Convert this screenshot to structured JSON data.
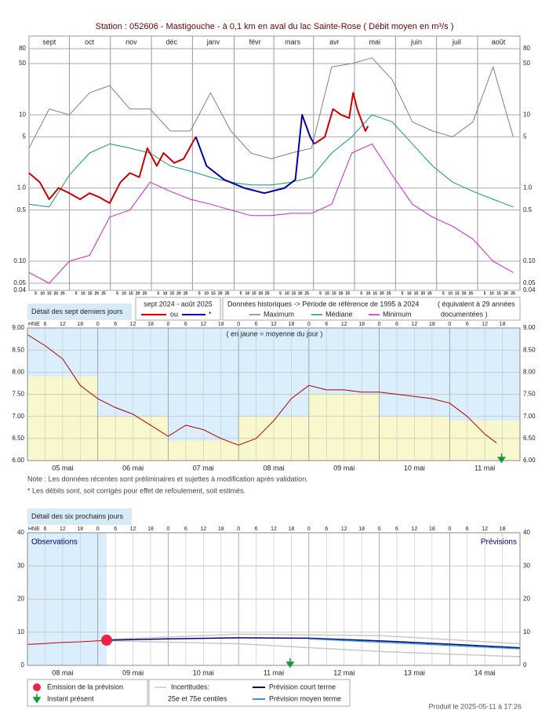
{
  "chart_data": [
    {
      "type": "line",
      "log_scale": true,
      "title": "Station : 052606      -  Mastigouche - à 0,1 km en aval du lac Sainte-Rose   ( Débit moyen en m³/s )",
      "xlim": [
        0,
        365
      ],
      "xticks": [
        {
          "value": 15,
          "label": "sept"
        },
        {
          "value": 45,
          "label": "oct"
        },
        {
          "value": 76,
          "label": "nov"
        },
        {
          "value": 106,
          "label": "déc"
        },
        {
          "value": 137,
          "label": "janv"
        },
        {
          "value": 168,
          "label": "févr"
        },
        {
          "value": 196,
          "label": "mars"
        },
        {
          "value": 227,
          "label": "avr"
        },
        {
          "value": 257,
          "label": "mai"
        },
        {
          "value": 288,
          "label": "juin"
        },
        {
          "value": 318,
          "label": "juil"
        },
        {
          "value": 349,
          "label": "août"
        }
      ],
      "day_ticks": [
        5,
        10,
        15,
        20,
        25
      ],
      "ylim": [
        0.04,
        80
      ],
      "yticks": [
        0.04,
        0.05,
        {
          "value": 0.1,
          "label": "0.10"
        },
        0.5,
        {
          "value": 1,
          "label": "1.0"
        },
        5,
        10,
        50,
        80
      ],
      "grid": true,
      "series": [
        {
          "name": "Maximum",
          "color": "#808080",
          "x": [
            0,
            15,
            30,
            45,
            60,
            75,
            90,
            105,
            120,
            135,
            150,
            165,
            180,
            195,
            210,
            225,
            240,
            255,
            270,
            285,
            300,
            315,
            330,
            345,
            360
          ],
          "values": [
            3.5,
            12,
            10,
            20,
            25,
            12,
            12,
            6,
            6,
            20,
            6,
            3,
            2.5,
            3,
            3.5,
            45,
            50,
            60,
            30,
            8,
            6,
            5,
            8,
            45,
            5
          ]
        },
        {
          "name": "Médiane",
          "color": "#119977",
          "x": [
            0,
            15,
            30,
            45,
            60,
            75,
            90,
            105,
            120,
            135,
            150,
            165,
            180,
            195,
            210,
            225,
            240,
            255,
            270,
            285,
            300,
            315,
            330,
            345,
            360
          ],
          "values": [
            0.6,
            0.55,
            1.5,
            3,
            4,
            3.5,
            3,
            2,
            1.7,
            1.4,
            1.2,
            1.1,
            1.1,
            1.2,
            1.4,
            3,
            5,
            10,
            8,
            4,
            2,
            1.2,
            0.9,
            0.7,
            0.55
          ]
        },
        {
          "name": "Minimum",
          "color": "#cc22cc",
          "x": [
            0,
            15,
            30,
            45,
            60,
            75,
            90,
            105,
            120,
            135,
            150,
            165,
            180,
            195,
            210,
            225,
            240,
            255,
            270,
            285,
            300,
            315,
            330,
            345,
            360
          ],
          "values": [
            0.07,
            0.05,
            0.1,
            0.12,
            0.4,
            0.5,
            1.2,
            0.9,
            0.7,
            0.6,
            0.5,
            0.42,
            0.42,
            0.45,
            0.45,
            0.6,
            3,
            4,
            1.5,
            0.6,
            0.4,
            0.3,
            0.2,
            0.1,
            0.07
          ]
        },
        {
          "color": "#cc0000",
          "x": [
            0,
            8,
            15,
            22,
            30,
            38,
            45,
            52,
            60,
            68,
            75,
            82,
            88,
            95,
            100,
            108,
            115,
            124,
            170,
            212,
            220,
            226,
            232,
            238,
            241,
            244,
            250,
            252
          ],
          "values": [
            1.6,
            1.2,
            0.7,
            1.0,
            0.85,
            0.7,
            0.85,
            0.75,
            0.62,
            1.2,
            1.6,
            1.4,
            3.5,
            2.0,
            3.0,
            2.2,
            2.5,
            5.0,
            null,
            4,
            5,
            12,
            10,
            9,
            20,
            12,
            6,
            7
          ]
        },
        {
          "color": "#0000aa",
          "x": [
            124,
            132,
            145,
            160,
            175,
            190,
            198,
            203,
            209,
            212
          ],
          "values": [
            5,
            2.0,
            1.3,
            1.0,
            0.85,
            1.0,
            1.3,
            10,
            5,
            4
          ]
        }
      ],
      "legend": {
        "period": "sept 2024 - août 2025",
        "or": "ou",
        "star": "*",
        "historical": "Données historiques -> Période de référence  de 1995 à 2024",
        "equivalent": "( équivalent à 29 années",
        "documented": "documentées )"
      }
    },
    {
      "type": "line",
      "title": "Détail des sept derniers jours",
      "time_zone": "HNE",
      "hour_labels": [
        6,
        12,
        18,
        0,
        6,
        12,
        18,
        0,
        6,
        12,
        18,
        0,
        6,
        12,
        18,
        0,
        6,
        12,
        18,
        0,
        6,
        12,
        18,
        0,
        6,
        12,
        18
      ],
      "annotation": "( en jaune = moyenne du jour )",
      "xlim": [
        0,
        168
      ],
      "categories": [
        "05 mai",
        "06 mai",
        "07 mai",
        "08 mai",
        "09 mai",
        "10 mai",
        "11 mai"
      ],
      "daily_means": [
        7.9,
        7.0,
        6.45,
        7.0,
        7.5,
        7.0,
        6.9
      ],
      "ylim": [
        6,
        9
      ],
      "yticks": [
        {
          "value": 6,
          "label": "6.00"
        },
        {
          "value": 6.5,
          "label": "6.50"
        },
        {
          "value": 7,
          "label": "7.00"
        },
        {
          "value": 7.5,
          "label": "7.50"
        },
        {
          "value": 8,
          "label": "8.00"
        },
        {
          "value": 8.5,
          "label": "8.50"
        },
        {
          "value": 9,
          "label": "9.00"
        }
      ],
      "series": [
        {
          "color": "#aa0000",
          "x": [
            0,
            6,
            12,
            18,
            24,
            30,
            36,
            42,
            48,
            54,
            60,
            66,
            72,
            78,
            84,
            90,
            96,
            102,
            108,
            114,
            120,
            126,
            132,
            138,
            144,
            150,
            156,
            160
          ],
          "values": [
            8.85,
            8.6,
            8.3,
            7.7,
            7.4,
            7.2,
            7.05,
            6.8,
            6.55,
            6.8,
            6.7,
            6.5,
            6.35,
            6.5,
            6.9,
            7.4,
            7.7,
            7.6,
            7.6,
            7.55,
            7.55,
            7.5,
            7.45,
            7.4,
            7.3,
            7.0,
            6.6,
            6.4
          ]
        }
      ],
      "present_instant": 161.7,
      "notes": [
        "Note : Les données récentes sont préliminaires et sujettes à modification après validation.",
        "* Les débits sont, soit corrigés pour effet de refoulement, soit estimés."
      ]
    },
    {
      "type": "line",
      "title": "Détail des six prochains jours",
      "time_zone": "HNE",
      "hour_labels": [
        6,
        12,
        18,
        0,
        6,
        12,
        18,
        0,
        6,
        12,
        18,
        0,
        6,
        12,
        18,
        0,
        6,
        12,
        18,
        0,
        6,
        12,
        18,
        0,
        6,
        12,
        18
      ],
      "forecast_label": "Prévisions",
      "xlim": [
        0,
        168
      ],
      "categories": [
        "08 mai",
        "09 mai",
        "10 mai",
        "11 mai",
        "12 mai",
        "13 mai",
        "14 mai"
      ],
      "ylim": [
        0,
        40
      ],
      "yticks": [
        0,
        10,
        20,
        30,
        40
      ],
      "series": [
        {
          "name": "Observations",
          "color": "#cc0000",
          "x": [
            0,
            6,
            12,
            18,
            24,
            27
          ],
          "values": [
            6.3,
            6.6,
            6.9,
            7.1,
            7.4,
            7.6
          ]
        },
        {
          "color": "#c8c8c8",
          "x": [
            27,
            72,
            120,
            168
          ],
          "values": [
            7.8,
            9.4,
            9.0,
            6.5
          ]
        },
        {
          "color": "#c8c8c8",
          "x": [
            27,
            72,
            120,
            168
          ],
          "values": [
            7.4,
            6.5,
            4.2,
            2.6
          ]
        },
        {
          "name": "Prévision court terme",
          "color": "#000080",
          "x": [
            27,
            48,
            72,
            96,
            120,
            144,
            168
          ],
          "values": [
            7.6,
            8.0,
            8.3,
            8.2,
            7.4,
            6.4,
            5.3
          ]
        },
        {
          "name": "Prévision moyen terme",
          "color": "#3399dd",
          "x": [
            96,
            120,
            144,
            168
          ],
          "values": [
            8.0,
            7.0,
            6.0,
            5.0
          ]
        }
      ],
      "emission": {
        "x": 27,
        "value": 7.6
      },
      "present_instant": 89.6,
      "legend": {
        "emission": "Émission de la prévision",
        "present": "Instant présent",
        "uncertainty": "Incertitudes:",
        "centiles": "25e et 75e centiles"
      },
      "footer": "Produit le 2025-05-11 à 17:26"
    }
  ]
}
